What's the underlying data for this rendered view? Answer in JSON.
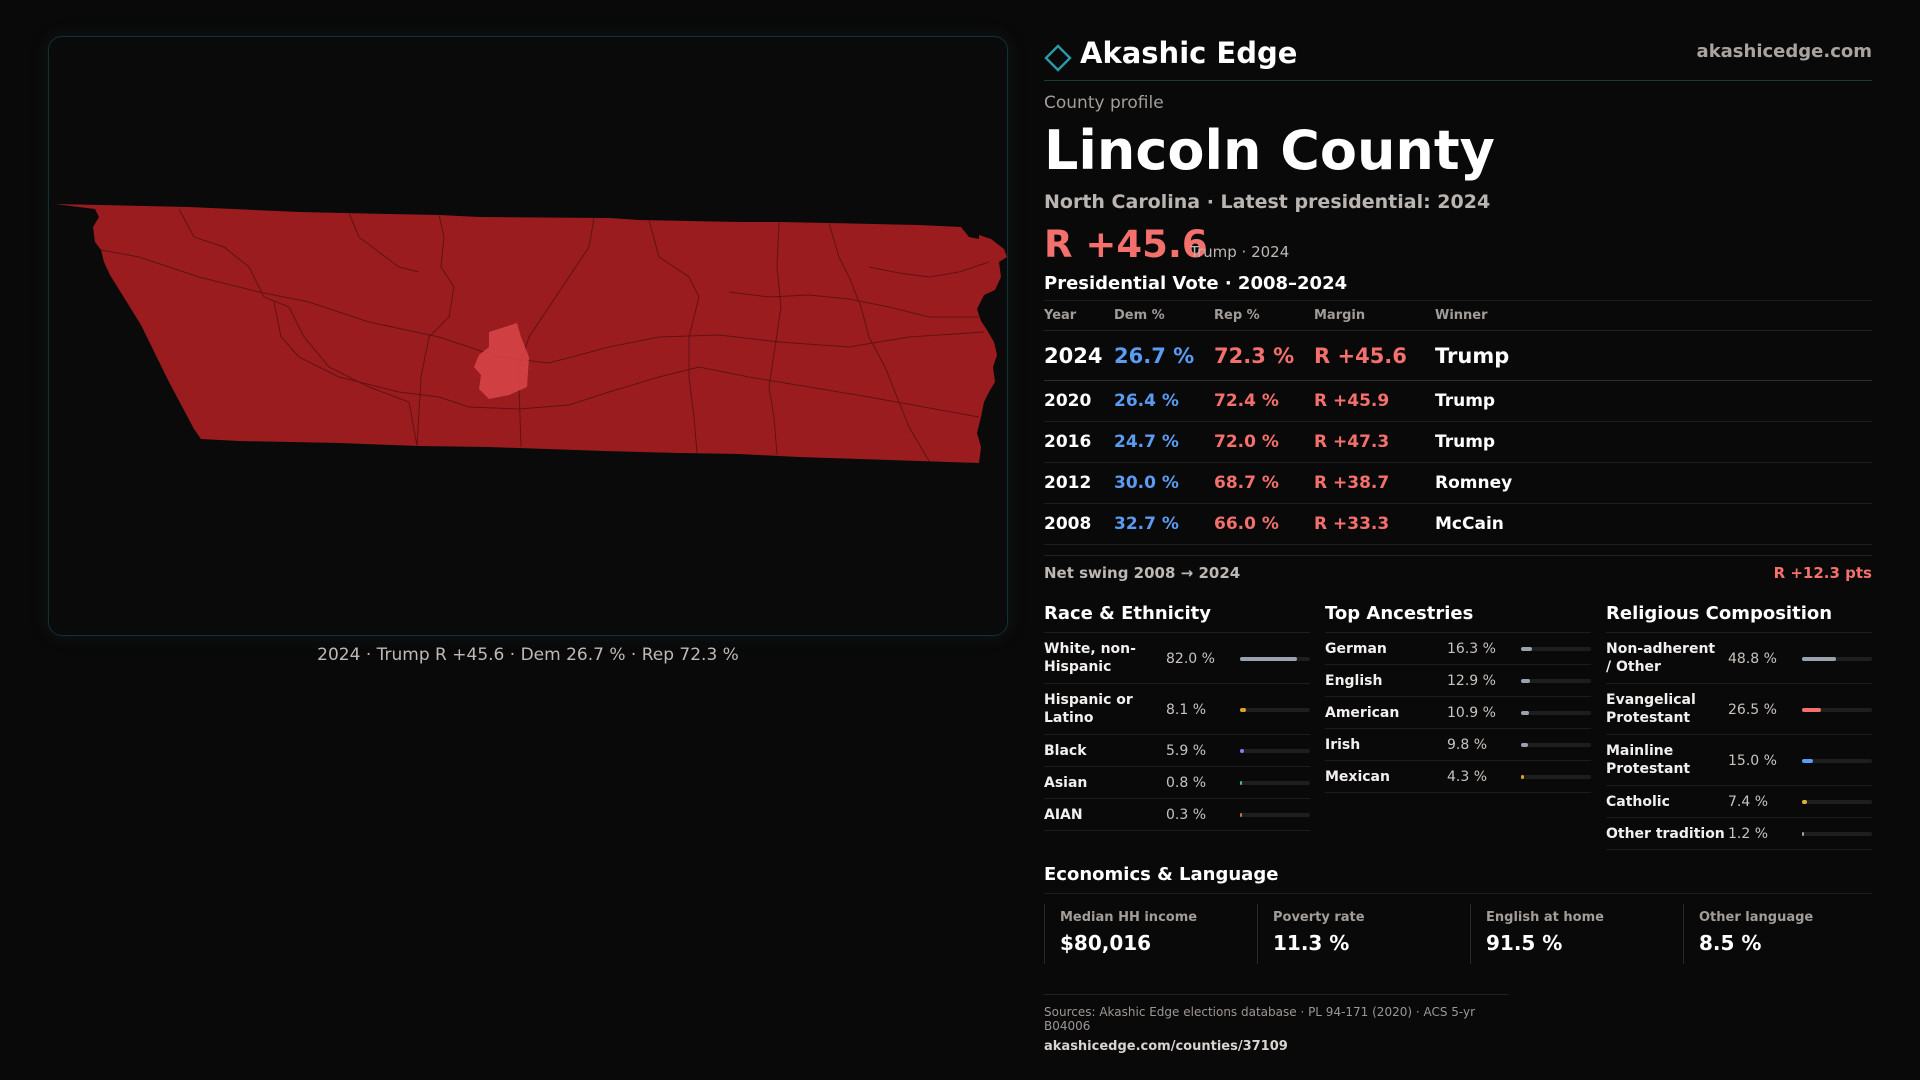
{
  "map": {
    "caption": "2024 · Trump R +45.6 · Dem 26.7 % · Rep 72.3 %",
    "fill_color": "#9b1c1f",
    "highlight_color": "#d9474a",
    "border_color": "#123236"
  },
  "brand": {
    "name": "Akashic Edge",
    "url": "akashicedge.com",
    "logo_icon": "diamond-icon"
  },
  "profile": {
    "eyebrow": "County profile",
    "county_name": "Lincoln County",
    "subtitle": "North Carolina · Latest presidential: 2024",
    "headline_margin": "R +45.6",
    "headline_note": "Trump · 2024"
  },
  "presidential": {
    "title": "Presidential Vote · 2008–2024",
    "headers": {
      "year": "Year",
      "dem": "Dem %",
      "rep": "Rep %",
      "margin": "Margin",
      "winner": "Winner"
    },
    "rows": [
      {
        "year": "2024",
        "dem": "26.7 %",
        "rep": "72.3 %",
        "margin": "R +45.6",
        "winner": "Trump"
      },
      {
        "year": "2020",
        "dem": "26.4 %",
        "rep": "72.4 %",
        "margin": "R +45.9",
        "winner": "Trump"
      },
      {
        "year": "2016",
        "dem": "24.7 %",
        "rep": "72.0 %",
        "margin": "R +47.3",
        "winner": "Trump"
      },
      {
        "year": "2012",
        "dem": "30.0 %",
        "rep": "68.7 %",
        "margin": "R +38.7",
        "winner": "Romney"
      },
      {
        "year": "2008",
        "dem": "32.7 %",
        "rep": "66.0 %",
        "margin": "R +33.3",
        "winner": "McCain"
      }
    ],
    "swing_label": "Net swing 2008 → 2024",
    "swing_value": "R +12.3 pts",
    "colors": {
      "dem": "#5a9cf2",
      "rep": "#f4706c"
    }
  },
  "race": {
    "title": "Race & Ethnicity",
    "items": [
      {
        "label": "White, non-Hispanic",
        "pct": "82.0 %",
        "share": 0.82,
        "color": "#9aa3ad"
      },
      {
        "label": "Hispanic or Latino",
        "pct": "8.1 %",
        "share": 0.081,
        "color": "#e0a030"
      },
      {
        "label": "Black",
        "pct": "5.9 %",
        "share": 0.059,
        "color": "#8b7cf0"
      },
      {
        "label": "Asian",
        "pct": "0.8 %",
        "share": 0.008,
        "color": "#3cc0a8"
      },
      {
        "label": "AIAN",
        "pct": "0.3 %",
        "share": 0.003,
        "color": "#d07040"
      }
    ]
  },
  "ancestry": {
    "title": "Top Ancestries",
    "items": [
      {
        "label": "German",
        "pct": "16.3 %",
        "share": 0.163,
        "color": "#9aa3ad"
      },
      {
        "label": "English",
        "pct": "12.9 %",
        "share": 0.129,
        "color": "#9aa3ad"
      },
      {
        "label": "American",
        "pct": "10.9 %",
        "share": 0.109,
        "color": "#9aa3ad"
      },
      {
        "label": "Irish",
        "pct": "9.8 %",
        "share": 0.098,
        "color": "#9aa3ad"
      },
      {
        "label": "Mexican",
        "pct": "4.3 %",
        "share": 0.043,
        "color": "#e0a030"
      }
    ]
  },
  "religion": {
    "title": "Religious Composition",
    "items": [
      {
        "label": "Non-adherent / Other",
        "pct": "48.8 %",
        "share": 0.488,
        "color": "#9aa3ad"
      },
      {
        "label": "Evangelical Protestant",
        "pct": "26.5 %",
        "share": 0.265,
        "color": "#f4706c"
      },
      {
        "label": "Mainline Protestant",
        "pct": "15.0 %",
        "share": 0.15,
        "color": "#5a9cf2"
      },
      {
        "label": "Catholic",
        "pct": "7.4 %",
        "share": 0.074,
        "color": "#e0b030"
      },
      {
        "label": "Other tradition",
        "pct": "1.2 %",
        "share": 0.012,
        "color": "#9aa3ad"
      }
    ]
  },
  "economics": {
    "title": "Economics & Language",
    "cards": [
      {
        "label": "Median HH income",
        "value": "$80,016"
      },
      {
        "label": "Poverty rate",
        "value": "11.3 %"
      },
      {
        "label": "English at home",
        "value": "91.5 %"
      },
      {
        "label": "Other language",
        "value": "8.5 %"
      }
    ]
  },
  "sources": {
    "text": "Sources: Akashic Edge elections database · PL 94-171 (2020) · ACS 5-yr B04006",
    "link": "akashicedge.com/counties/37109"
  }
}
